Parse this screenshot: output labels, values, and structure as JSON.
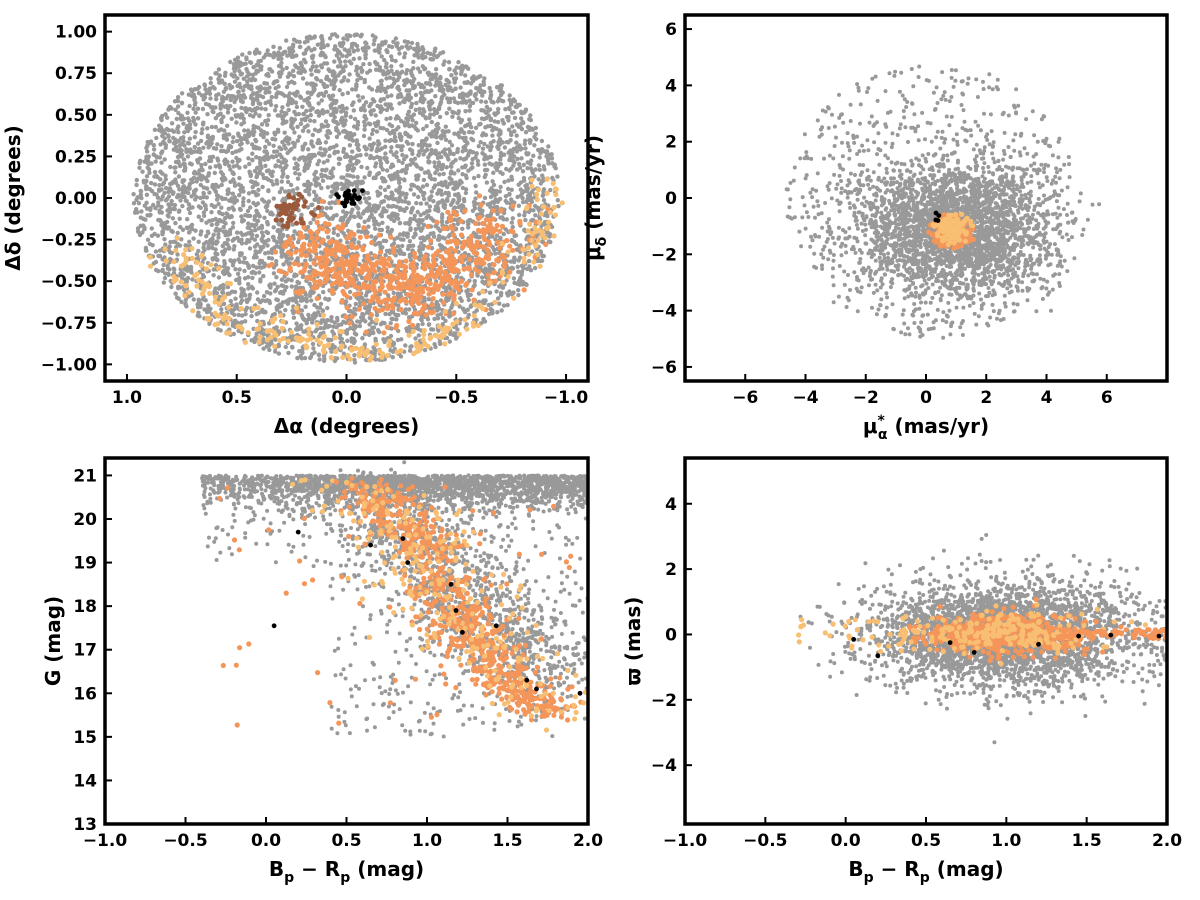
{
  "colors": {
    "field": "#999999",
    "member_light": "#f8bf72",
    "member_mid": "#f4955a",
    "member_brown": "#9c5a3c",
    "black": "#000000"
  },
  "chart_data": [
    {
      "id": "sky",
      "type": "scatter",
      "xlabel": "Δα (degrees)",
      "ylabel": "Δδ (degrees)",
      "xlim": [
        1.1,
        -1.1
      ],
      "ylim": [
        -1.1,
        1.1
      ],
      "x_inverted": true,
      "xticks": [
        1.0,
        0.5,
        0.0,
        -0.5,
        -1.0
      ],
      "xtick_labels": [
        "1.0",
        "0.5",
        "0.0",
        "−0.5",
        "−1.0"
      ],
      "yticks": [
        1.0,
        0.75,
        0.5,
        0.25,
        0.0,
        -0.25,
        -0.5,
        -0.75,
        -1.0
      ],
      "ytick_labels": [
        "1.00",
        "0.75",
        "0.50",
        "0.25",
        "0.00",
        "−0.25",
        "−0.50",
        "−0.75",
        "−1.00"
      ],
      "grid": false,
      "series": [
        {
          "role": "field",
          "color": "#999999",
          "size": 2.2,
          "count": 5200,
          "distribution": "disk",
          "center": [
            0,
            0
          ],
          "radius": [
            0.97,
            0.99
          ]
        },
        {
          "role": "members",
          "color": "#f4955a",
          "size": 2.6,
          "count": 650,
          "distribution": "band",
          "points_along": [
            [
              0.15,
              -0.25
            ],
            [
              0.0,
              -0.45
            ],
            [
              -0.25,
              -0.55
            ],
            [
              -0.5,
              -0.45
            ],
            [
              -0.7,
              -0.15
            ]
          ],
          "width": 0.18
        },
        {
          "role": "members",
          "color": "#f8bf72",
          "size": 2.6,
          "count": 260,
          "distribution": "band",
          "points_along": [
            [
              0.75,
              -0.3
            ],
            [
              0.6,
              -0.7
            ],
            [
              0.2,
              -0.85
            ],
            [
              -0.1,
              -0.95
            ],
            [
              -0.45,
              -0.85
            ],
            [
              -0.85,
              -0.35
            ],
            [
              -0.92,
              0.15
            ]
          ],
          "width": 0.1
        },
        {
          "role": "members",
          "color": "#9c5a3c",
          "size": 2.6,
          "count": 45,
          "distribution": "gauss",
          "center": [
            0.25,
            -0.07
          ],
          "sigma": [
            0.04,
            0.05
          ]
        },
        {
          "role": "members",
          "color": "#000000",
          "size": 2.4,
          "count": 28,
          "distribution": "gauss",
          "center": [
            -0.01,
            0.0
          ],
          "sigma": [
            0.035,
            0.03
          ]
        }
      ]
    },
    {
      "id": "pm",
      "type": "scatter",
      "xlabel": "μ*α (mas/yr)",
      "ylabel": "μδ (mas/yr)",
      "xlim": [
        -8,
        8
      ],
      "ylim": [
        -6.5,
        6.5
      ],
      "xticks": [
        -6,
        -4,
        -2,
        0,
        2,
        4,
        6
      ],
      "xtick_labels": [
        "−6",
        "−4",
        "−2",
        "0",
        "2",
        "4",
        "6"
      ],
      "yticks": [
        6,
        4,
        2,
        0,
        -2,
        -4,
        -6
      ],
      "ytick_labels": [
        "6",
        "4",
        "2",
        "0",
        "−2",
        "−4",
        "−6"
      ],
      "grid": false,
      "series": [
        {
          "role": "field",
          "color": "#999999",
          "size": 2.0,
          "count": 2600,
          "distribution": "gauss_clipped",
          "center": [
            1.0,
            -1.1
          ],
          "sigma": [
            1.6,
            1.2
          ],
          "clip_radius": [
            5.0,
            4.0
          ]
        },
        {
          "role": "field",
          "color": "#999999",
          "size": 2.0,
          "count": 700,
          "distribution": "disk",
          "center": [
            0.2,
            -0.1
          ],
          "radius": [
            4.9,
            4.9
          ]
        },
        {
          "role": "members",
          "color": "#f4955a",
          "size": 2.6,
          "count": 260,
          "distribution": "gauss_clipped",
          "center": [
            0.85,
            -1.2
          ],
          "sigma": [
            0.35,
            0.3
          ],
          "clip_radius": [
            0.8,
            0.65
          ]
        },
        {
          "role": "members",
          "color": "#f8bf72",
          "size": 2.6,
          "count": 120,
          "distribution": "gauss_clipped",
          "center": [
            0.9,
            -1.1
          ],
          "sigma": [
            0.3,
            0.28
          ],
          "clip_radius": [
            0.7,
            0.6
          ]
        },
        {
          "role": "members",
          "color": "#000000",
          "size": 2.4,
          "count": 4,
          "distribution": "gauss",
          "center": [
            0.35,
            -0.7
          ],
          "sigma": [
            0.08,
            0.08
          ]
        }
      ]
    },
    {
      "id": "cmd",
      "type": "scatter",
      "xlabel": "Bp − Rp (mag)",
      "ylabel": "G (mag)",
      "xlim": [
        -1.0,
        2.0
      ],
      "ylim": [
        13,
        21.4
      ],
      "y_inverted": false,
      "xticks": [
        -1.0,
        -0.5,
        0.0,
        0.5,
        1.0,
        1.5,
        2.0
      ],
      "xtick_labels": [
        "−1.0",
        "−0.5",
        "0.0",
        "0.5",
        "1.0",
        "1.5",
        "2.0"
      ],
      "yticks": [
        21,
        20,
        19,
        18,
        17,
        16,
        15,
        14,
        13
      ],
      "ytick_labels": [
        "21",
        "20",
        "19",
        "18",
        "17",
        "16",
        "15",
        "14",
        "13"
      ],
      "grid": false,
      "series": [
        {
          "role": "field",
          "color": "#999999",
          "size": 2.0,
          "count": 3500,
          "distribution": "cmd_field"
        },
        {
          "role": "members",
          "color": "#f4955a",
          "size": 2.6,
          "count": 700,
          "distribution": "sequence",
          "curve": [
            [
              0.6,
              20.8
            ],
            [
              0.85,
              20.0
            ],
            [
              1.0,
              19.2
            ],
            [
              1.15,
              18.0
            ],
            [
              1.3,
              17.2
            ],
            [
              1.5,
              16.3
            ],
            [
              1.8,
              15.5
            ]
          ],
          "width": 0.12
        },
        {
          "role": "members",
          "color": "#f8bf72",
          "size": 2.6,
          "count": 260,
          "distribution": "sequence",
          "curve": [
            [
              0.5,
              20.9
            ],
            [
              0.85,
              20.0
            ],
            [
              1.0,
              19.2
            ],
            [
              1.2,
              18.0
            ],
            [
              1.4,
              16.8
            ],
            [
              1.9,
              15.3
            ]
          ],
          "width": 0.2
        },
        {
          "role": "members",
          "color": "#f4955a",
          "size": 2.6,
          "count": 60,
          "distribution": "uniform",
          "xrange": [
            -0.3,
            1.9
          ],
          "yrange": [
            15.2,
            20.9
          ]
        },
        {
          "role": "members",
          "color": "#000000",
          "size": 2.4,
          "count": 0,
          "distribution": "list",
          "points": [
            [
              0.2,
              19.7
            ],
            [
              0.05,
              17.55
            ],
            [
              0.65,
              19.4
            ],
            [
              0.85,
              19.55
            ],
            [
              0.88,
              19.0
            ],
            [
              1.15,
              18.5
            ],
            [
              1.18,
              17.9
            ],
            [
              1.22,
              17.4
            ],
            [
              1.43,
              17.55
            ],
            [
              1.62,
              16.3
            ],
            [
              1.68,
              16.1
            ],
            [
              1.95,
              16.0
            ]
          ]
        }
      ]
    },
    {
      "id": "parallax",
      "type": "scatter",
      "xlabel": "Bp − Rp (mag)",
      "ylabel": "ϖ (mas)",
      "xlim": [
        -1.0,
        2.0
      ],
      "ylim": [
        -5.8,
        5.4
      ],
      "xticks": [
        -1.0,
        -0.5,
        0.0,
        0.5,
        1.0,
        1.5,
        2.0
      ],
      "xtick_labels": [
        "−1.0",
        "−0.5",
        "0.0",
        "0.5",
        "1.0",
        "1.5",
        "2.0"
      ],
      "yticks": [
        4,
        2,
        0,
        -2,
        -4
      ],
      "ytick_labels": [
        "4",
        "2",
        "0",
        "−2",
        "−4"
      ],
      "grid": false,
      "series": [
        {
          "role": "field",
          "color": "#999999",
          "size": 2.0,
          "count": 3300,
          "distribution": "gauss_clipped",
          "center": [
            1.0,
            0.0
          ],
          "sigma": [
            0.42,
            0.8
          ],
          "clip_radius": [
            1.3,
            4.5
          ]
        },
        {
          "role": "members",
          "color": "#f4955a",
          "size": 2.6,
          "count": 650,
          "distribution": "gauss_clipped",
          "center": [
            1.0,
            0.0
          ],
          "sigma": [
            0.25,
            0.3
          ],
          "clip_radius": [
            0.9,
            1.4
          ]
        },
        {
          "role": "members",
          "color": "#f8bf72",
          "size": 2.6,
          "count": 200,
          "distribution": "gauss_clipped",
          "center": [
            1.0,
            0.0
          ],
          "sigma": [
            0.3,
            0.3
          ],
          "clip_radius": [
            1.0,
            1.4
          ]
        },
        {
          "role": "members",
          "color": "#f4955a",
          "size": 2.6,
          "count": 80,
          "distribution": "uniform_band",
          "xrange": [
            1.3,
            2.0
          ],
          "yrange": [
            -0.15,
            0.15
          ]
        },
        {
          "role": "members",
          "color": "#f8bf72",
          "size": 2.6,
          "count": 40,
          "distribution": "uniform_band",
          "xrange": [
            -0.3,
            0.5
          ],
          "yrange": [
            -0.6,
            0.6
          ]
        },
        {
          "role": "members",
          "color": "#000000",
          "size": 2.4,
          "count": 0,
          "distribution": "list",
          "points": [
            [
              0.05,
              -0.15
            ],
            [
              0.2,
              -0.65
            ],
            [
              0.65,
              -0.25
            ],
            [
              0.8,
              -0.55
            ],
            [
              1.2,
              -0.3
            ],
            [
              1.45,
              -0.05
            ],
            [
              1.65,
              -0.02
            ],
            [
              1.95,
              -0.05
            ]
          ]
        }
      ]
    }
  ]
}
